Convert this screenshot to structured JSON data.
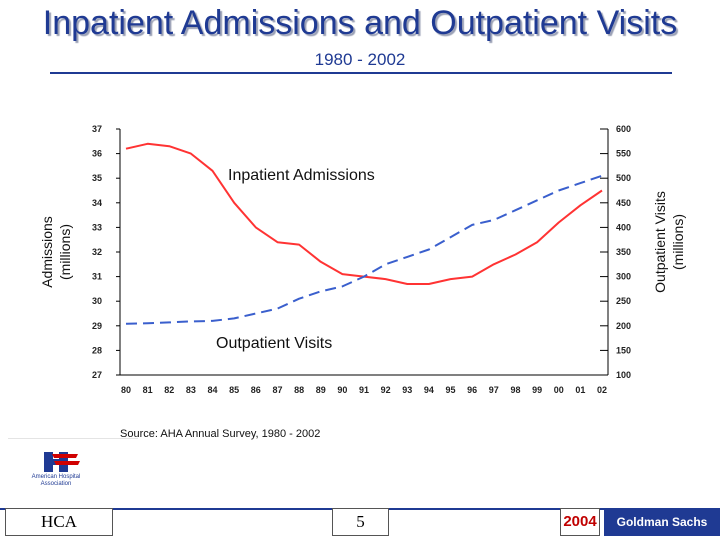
{
  "header": {
    "title": "Inpatient Admissions and Outpatient Visits",
    "subtitle": "1980 - 2002"
  },
  "chart_data": {
    "type": "line",
    "x": [
      "80",
      "81",
      "82",
      "83",
      "84",
      "85",
      "86",
      "87",
      "88",
      "89",
      "90",
      "91",
      "92",
      "93",
      "94",
      "95",
      "96",
      "97",
      "98",
      "99",
      "00",
      "01",
      "02"
    ],
    "left_axis": {
      "label": "Admissions (millions)",
      "ticks": [
        27,
        28,
        29,
        30,
        31,
        32,
        33,
        34,
        35,
        36,
        37
      ],
      "ylim": [
        27,
        37
      ]
    },
    "right_axis": {
      "label": "Outpatient Visits (millions)",
      "ticks": [
        100,
        150,
        200,
        250,
        300,
        350,
        400,
        450,
        500,
        550,
        600
      ],
      "ylim": [
        100,
        600
      ]
    },
    "series": [
      {
        "name": "Inpatient Admissions",
        "axis": "left",
        "color": "#ff3333",
        "style": "solid",
        "values": [
          36.2,
          36.4,
          36.3,
          36.0,
          35.3,
          34.0,
          33.0,
          32.4,
          32.3,
          31.6,
          31.1,
          31.0,
          30.9,
          30.7,
          30.7,
          30.9,
          31.0,
          31.5,
          31.9,
          32.4,
          33.2,
          33.9,
          34.5
        ]
      },
      {
        "name": "Outpatient Visits",
        "axis": "right",
        "color": "#3a5fcd",
        "style": "dashed",
        "values": [
          204,
          205,
          207,
          209,
          210,
          215,
          225,
          235,
          255,
          270,
          280,
          300,
          325,
          340,
          355,
          380,
          405,
          415,
          435,
          455,
          475,
          490,
          505
        ]
      }
    ]
  },
  "source": "Source: AHA Annual Survey, 1980 - 2002",
  "logo_text": "American Hospital Association",
  "footer": {
    "left": "HCA",
    "page": "5",
    "year": "2004",
    "right": "Goldman Sachs"
  },
  "colors": {
    "brand": "#1f3a93",
    "inpatient": "#ff3333",
    "outpatient": "#3a5fcd"
  }
}
